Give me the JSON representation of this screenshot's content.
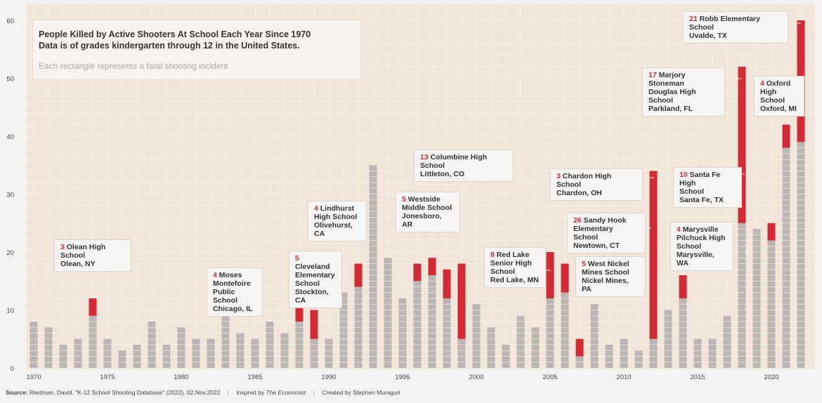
{
  "chart_data": {
    "type": "bar",
    "title": "People Killed by Active Shooters At School Each Year Since 1970",
    "subtitle": "Data is of grades kindergarten through 12 in the United States.",
    "note": "Each rectangle represents a fatal shooting incident",
    "ylim": [
      0,
      60
    ],
    "yticks": [
      0,
      10,
      20,
      30,
      40,
      50,
      60
    ],
    "xticks": [
      1970,
      1975,
      1980,
      1985,
      1990,
      1995,
      2000,
      2005,
      2010,
      2015,
      2020
    ],
    "categories": [
      1970,
      1971,
      1972,
      1973,
      1974,
      1975,
      1976,
      1977,
      1978,
      1979,
      1980,
      1981,
      1982,
      1983,
      1984,
      1985,
      1986,
      1987,
      1988,
      1989,
      1990,
      1991,
      1992,
      1993,
      1994,
      1995,
      1996,
      1997,
      1998,
      1999,
      2000,
      2001,
      2002,
      2003,
      2004,
      2005,
      2006,
      2007,
      2008,
      2009,
      2010,
      2011,
      2012,
      2013,
      2014,
      2015,
      2016,
      2017,
      2018,
      2019,
      2020,
      2021,
      2022
    ],
    "series": [
      {
        "values": [
          8,
          7,
          4,
          5,
          9,
          5,
          3,
          4,
          8,
          4,
          7,
          5,
          5,
          9,
          6,
          5,
          8,
          6,
          8,
          5,
          5,
          13,
          14,
          35,
          19,
          12,
          15,
          16,
          12,
          5,
          11,
          7,
          4,
          9,
          7,
          12,
          13,
          2,
          11,
          4,
          5,
          3,
          5,
          10,
          12,
          5,
          5,
          9,
          25,
          24,
          22,
          38,
          39
        ]
      },
      {
        "values": [
          0,
          0,
          0,
          0,
          3,
          0,
          0,
          0,
          0,
          0,
          0,
          0,
          0,
          0,
          0,
          0,
          0,
          0,
          4,
          5,
          0,
          0,
          4,
          0,
          0,
          0,
          3,
          3,
          5,
          13,
          0,
          0,
          0,
          0,
          0,
          8,
          5,
          3,
          0,
          0,
          0,
          0,
          29,
          0,
          4,
          0,
          0,
          0,
          27,
          0,
          3,
          4,
          21
        ]
      }
    ],
    "colors": {
      "regular": "#bdb5b5",
      "highlight": "#d22b35",
      "background": "#f2e6da"
    },
    "annotations": [
      {
        "count": "3",
        "text": "Olean High School\nOlean, NY"
      },
      {
        "count": "4",
        "text": "Moses\nMontefoire\nPublic School\nChicago, IL"
      },
      {
        "count": "5",
        "text": "Cleveland\nElementary\nSchool\nStockton, CA"
      },
      {
        "count": "4",
        "text": "Lindhurst\nHigh School\nOlivehurst, CA"
      },
      {
        "count": "5",
        "text": "Westside\nMiddle School\nJonesboro, AR"
      },
      {
        "count": "13",
        "text": "Columbine High School\nLittleton, CO"
      },
      {
        "count": "8",
        "text": "Red Lake\nSenior High\nSchool\nRed Lake, MN"
      },
      {
        "count": "5",
        "text": "West Nickel\nMines School\nNickel Mines, PA"
      },
      {
        "count": "26",
        "text": "Sandy Hook\nElementary School\nNewtown, CT"
      },
      {
        "count": "3",
        "text": "Chardon High School\nChardon, OH"
      },
      {
        "count": "4",
        "text": "Marysville\nPilchuck High\nSchool\nMarysville, WA"
      },
      {
        "count": "10",
        "text": "Santa Fe High\nSchool\nSanta Fe, TX"
      },
      {
        "count": "17",
        "text": "Marjory Stoneman\nDouglas High School\nParkland, FL"
      },
      {
        "count": "4",
        "text": "Oxford\nHigh School\nOxford, MI"
      },
      {
        "count": "21",
        "text": "Robb Elementary School\nUvalde, TX"
      }
    ]
  },
  "footer": {
    "source_label": "Source:",
    "source_text": "Riedman, David. \"K-12 School Shooting Database\" (2022). 02.Nov.2022",
    "inspired_prefix": "Inspred by",
    "inspired_name": "The Economist",
    "created_by": "Created by Stephen Muraguri",
    "separator": "|"
  }
}
